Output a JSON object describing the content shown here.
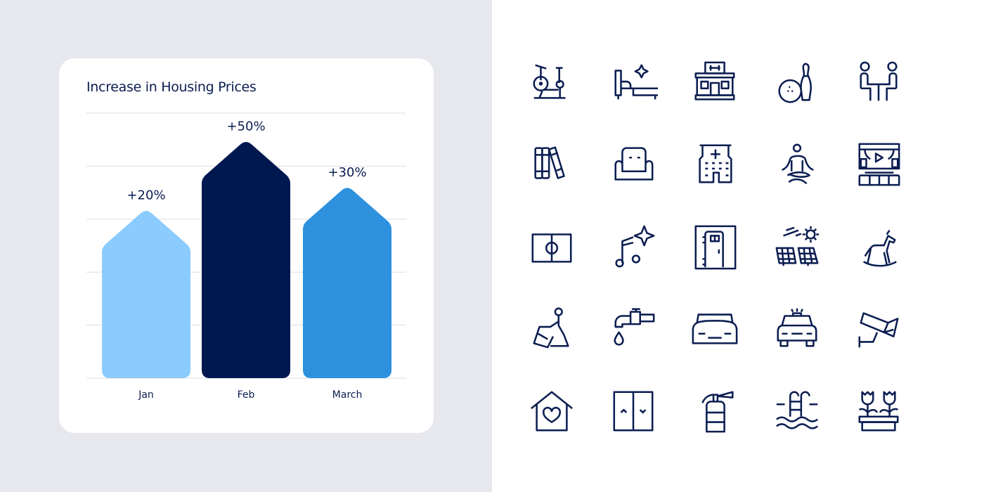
{
  "chart_data": {
    "type": "bar",
    "title": "Increase in Housing Prices",
    "categories": [
      "Jan",
      "Feb",
      "March"
    ],
    "values": [
      20,
      50,
      30
    ],
    "data_labels": [
      "+20%",
      "+50%",
      "+30%"
    ],
    "colors": [
      "#8bcbfd",
      "#001850",
      "#2d91de"
    ],
    "bar_shape": "arrow-top",
    "grid": true,
    "xlabel": "",
    "ylabel": ""
  },
  "colors": {
    "left_background": "#e6e8ed",
    "card": "#ffffff",
    "text": "#0b1d51",
    "icon_stroke": "#0b1d51",
    "grid": "#dcdde3"
  },
  "icons": [
    "exercise-bike-icon",
    "bed-sparkle-icon",
    "gym-building-icon",
    "bowling-icon",
    "meeting-table-icon",
    "books-icon",
    "sofa-icon",
    "hospital-icon",
    "meditation-icon",
    "theater-icon",
    "soccer-field-icon",
    "music-sparkle-icon",
    "door-icon",
    "solar-panel-icon",
    "rocking-horse-icon",
    "yoga-stretch-icon",
    "water-tap-icon",
    "car-front-icon",
    "taxi-icon",
    "security-camera-icon",
    "house-heart-icon",
    "elevator-doors-icon",
    "fire-extinguisher-icon",
    "pool-ladder-icon",
    "flower-planter-icon"
  ]
}
